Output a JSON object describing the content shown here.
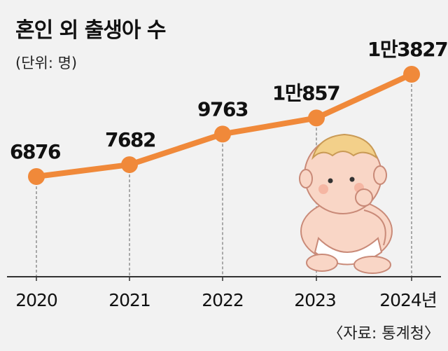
{
  "title": "혼인 외 출생아 수",
  "unit": "(단위: 명)",
  "source": "〈자료: 통계청〉",
  "colors": {
    "line": "#f0893a",
    "marker": "#f0893a",
    "axis": "#333333",
    "dash": "#777777",
    "background": "#f2f2f2"
  },
  "chart_data": {
    "type": "line",
    "title": "혼인 외 출생아 수",
    "categories": [
      "2020",
      "2021",
      "2022",
      "2023",
      "2024년"
    ],
    "series": [
      {
        "values": [
          6876,
          7682,
          9763,
          10857,
          13827
        ]
      }
    ],
    "data_labels": [
      "6876",
      "7682",
      "9763",
      "1만857",
      "1만3827"
    ],
    "grid": false,
    "legend": "none"
  },
  "illustration": "baby-illustration"
}
